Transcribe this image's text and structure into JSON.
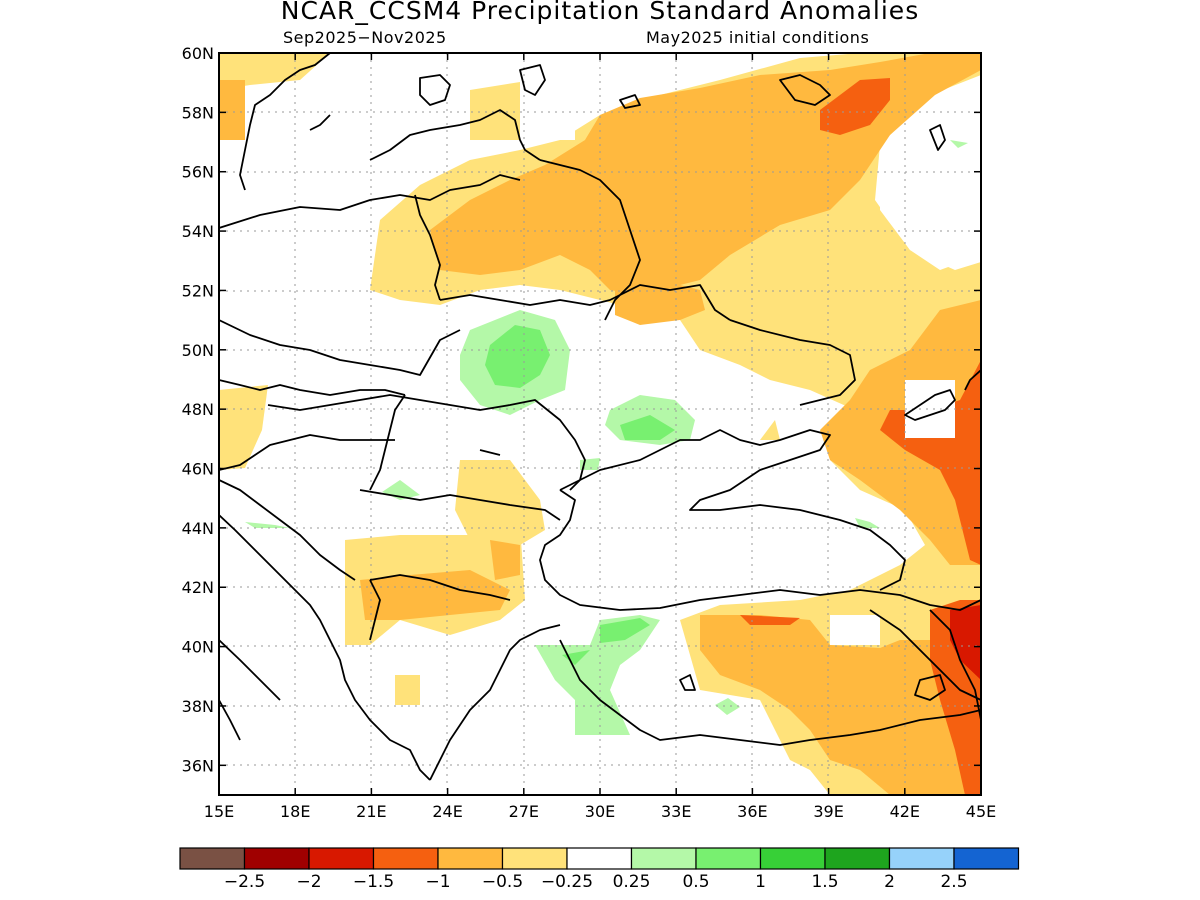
{
  "header": {
    "title": "NCAR_CCSM4 Precipitation Standard Anomalies",
    "period": "Sep2025−Nov2025",
    "initial": "May2025 initial conditions"
  },
  "axes": {
    "lon_ticks": [
      "15E",
      "18E",
      "21E",
      "24E",
      "27E",
      "30E",
      "33E",
      "36E",
      "39E",
      "42E",
      "45E"
    ],
    "lat_ticks": [
      "60N",
      "58N",
      "56N",
      "54N",
      "52N",
      "50N",
      "48N",
      "46N",
      "44N",
      "42N",
      "40N",
      "38N",
      "36N"
    ]
  },
  "colorbar": {
    "colors": [
      "#7a5144",
      "#a00000",
      "#d81800",
      "#f56010",
      "#ffb93f",
      "#ffe27a",
      "#ffffff",
      "#b4f8a8",
      "#78f070",
      "#37d037",
      "#1ea51e",
      "#96d2fa",
      "#1464d2"
    ],
    "labels": [
      "−2.5",
      "−2",
      "−1.5",
      "−1",
      "−0.5",
      "−0.25",
      "0.25",
      "0.5",
      "1",
      "1.5",
      "2",
      "2.5"
    ]
  }
}
